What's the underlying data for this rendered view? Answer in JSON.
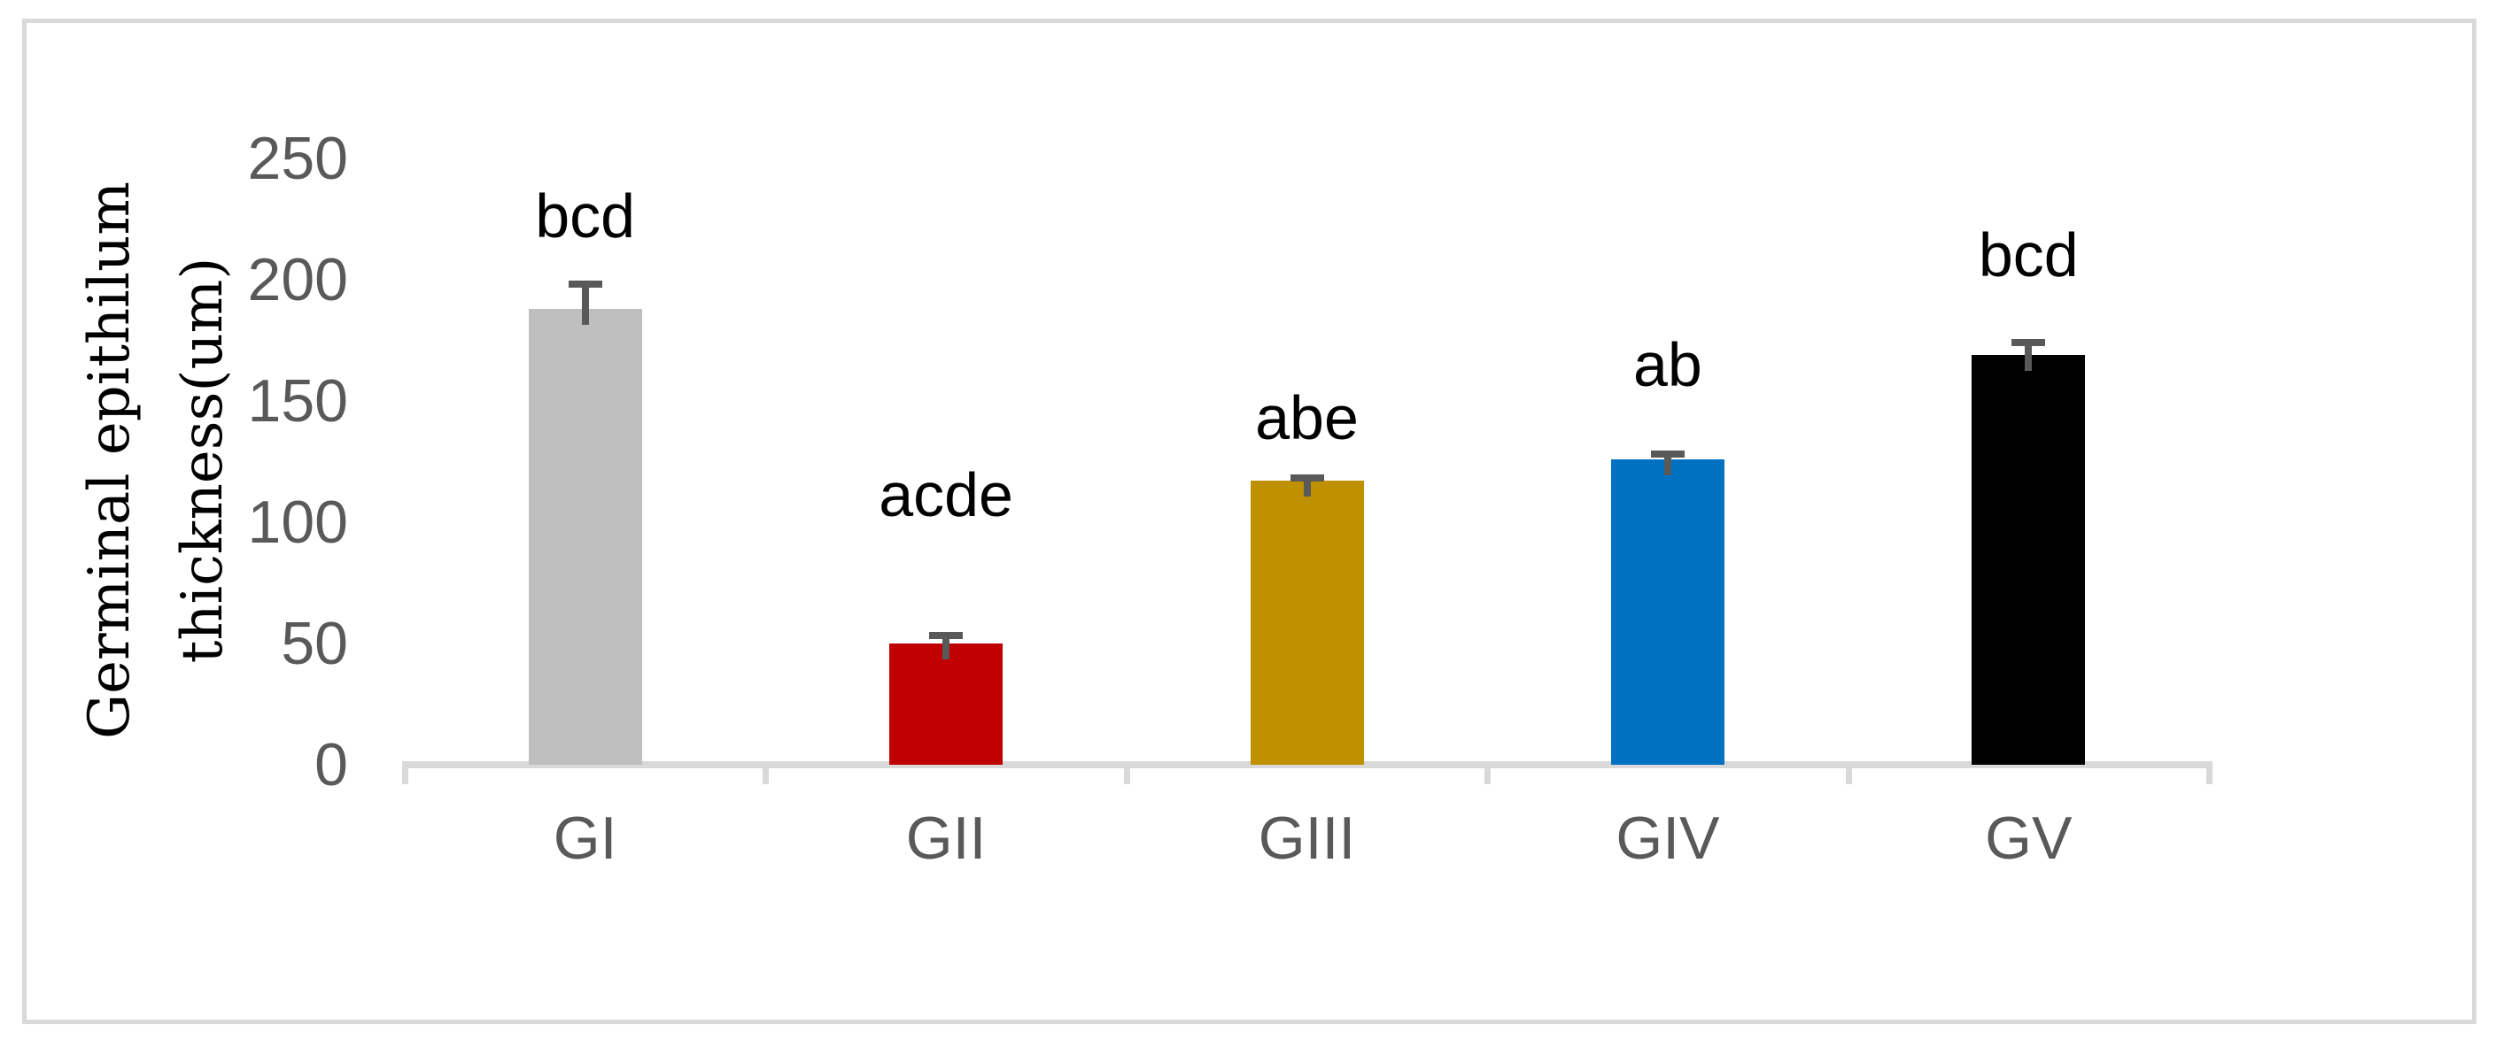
{
  "figure": {
    "background_color": "#FFFFFF",
    "border_color": "#D9D9D9"
  },
  "chart_data": {
    "type": "bar",
    "title": "",
    "categories": [
      "GI",
      "GII",
      "GIII",
      "GIV",
      "GV"
    ],
    "values": [
      188,
      50,
      117,
      126,
      169
    ],
    "errors": [
      11,
      4,
      2,
      3,
      6
    ],
    "bar_labels": [
      "bcd",
      "acde",
      "abe",
      "ab",
      "bcd"
    ],
    "bar_colors": [
      "#BFBFBF",
      "#C00000",
      "#BF9000",
      "#0070C0",
      "#000000"
    ],
    "label_y": [
      213,
      98,
      130,
      152,
      197
    ],
    "xlabel": "",
    "ylabel": "Germinal epithilum thickness(um)",
    "ylabel_lines": [
      "Germinal epithilum",
      "thickness(um)"
    ],
    "ylim": [
      0,
      250
    ],
    "yticks": [
      0,
      50,
      100,
      150,
      200,
      250
    ],
    "grid": false,
    "legend": false,
    "axis_color": "#D9D9D9",
    "tick_label_color": "#595959",
    "error_bar_color": "#595959"
  }
}
